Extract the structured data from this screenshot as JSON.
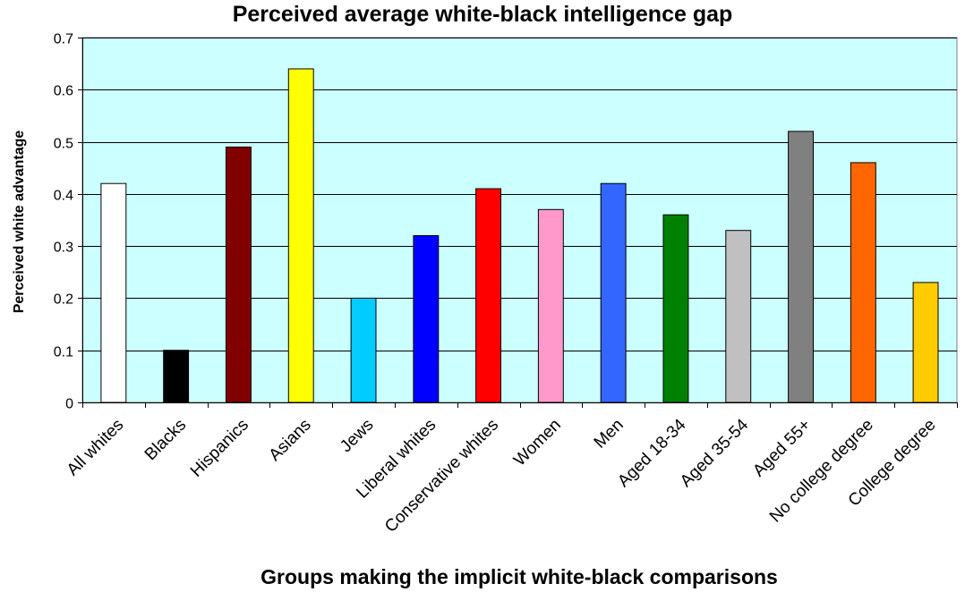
{
  "chart_data": {
    "type": "bar",
    "title": "Perceived average white-black intelligence gap",
    "xlabel": "Groups making the implicit white-black comparisons",
    "ylabel": "Perceived white advantage",
    "ylim": [
      0,
      0.7
    ],
    "yticks": [
      "0",
      "0.1",
      "0.2",
      "0.3",
      "0.4",
      "0.5",
      "0.6",
      "0.7"
    ],
    "grid": true,
    "legend": "none",
    "plot_background": "#ccffff",
    "categories": [
      "All whites",
      "Blacks",
      "Hispanics",
      "Asians",
      "Jews",
      "Liberal whites",
      "Conservative whites",
      "Women",
      "Men",
      "Aged 18-34",
      "Aged 35-54",
      "Aged 55+",
      "No college degree",
      "College degree"
    ],
    "values": [
      0.42,
      0.1,
      0.49,
      0.64,
      0.2,
      0.32,
      0.41,
      0.37,
      0.42,
      0.36,
      0.33,
      0.52,
      0.46,
      0.23
    ],
    "colors": [
      "#ffffff",
      "#000000",
      "#800000",
      "#ffff00",
      "#00ccff",
      "#0000ff",
      "#ff0000",
      "#ff99cc",
      "#3366ff",
      "#008000",
      "#c0c0c0",
      "#808080",
      "#ff6600",
      "#ffcc00"
    ]
  }
}
